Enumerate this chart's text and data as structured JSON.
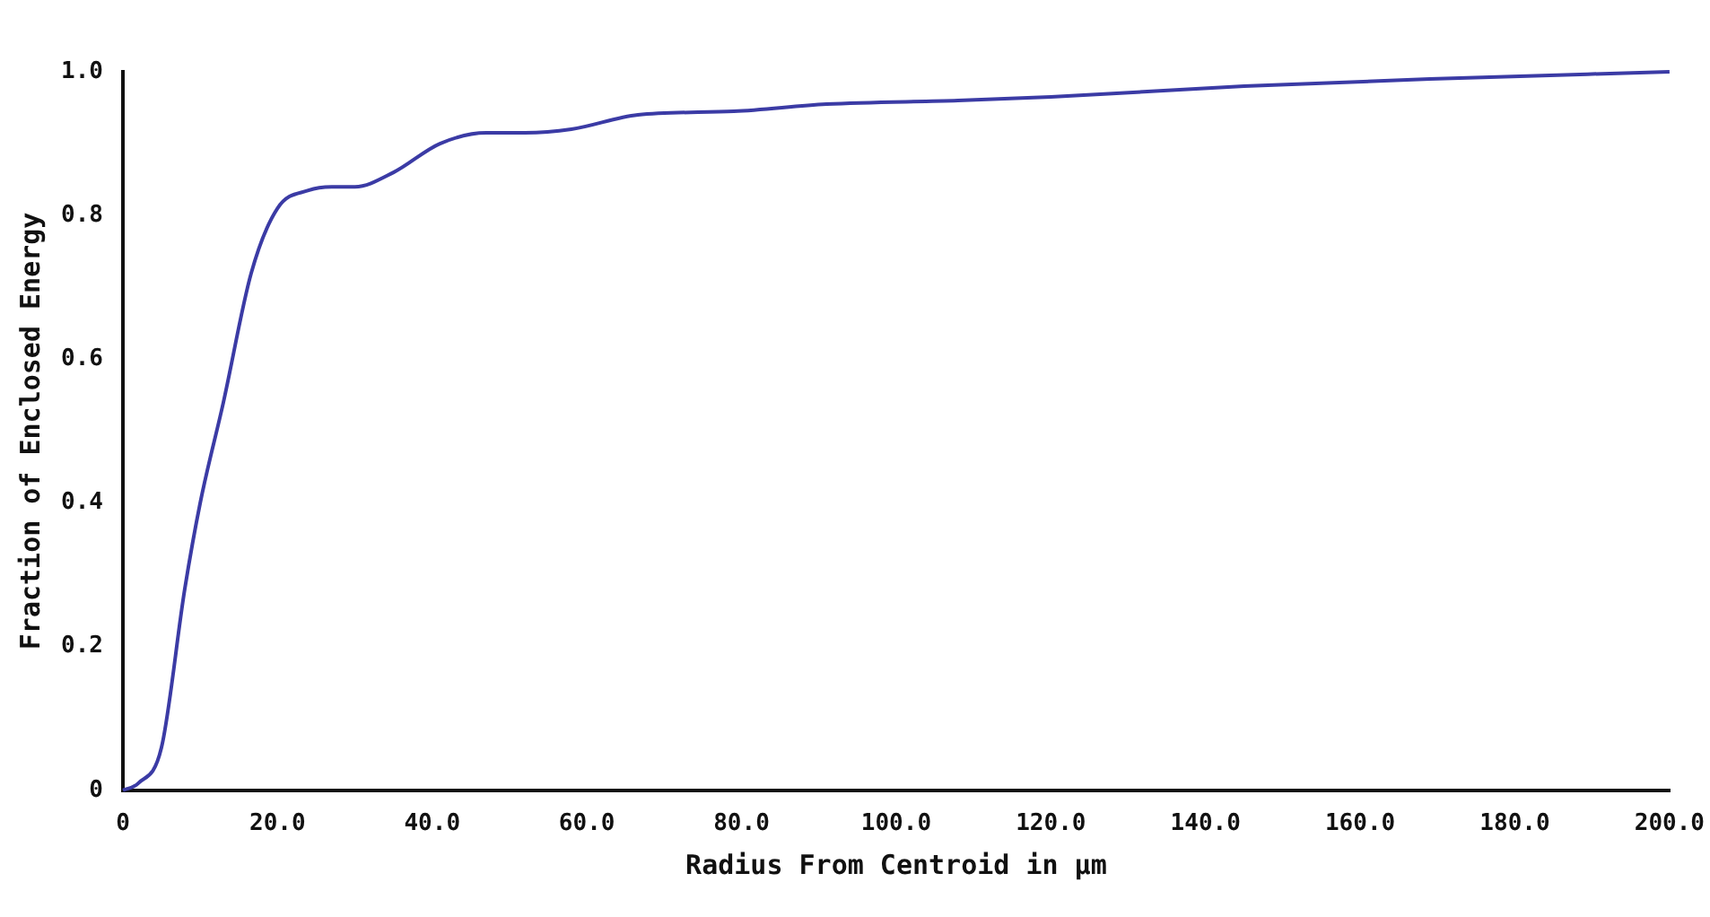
{
  "chart_data": {
    "type": "line",
    "xlabel": "Radius From Centroid in µm",
    "ylabel": "Fraction of Enclosed Energy",
    "x": [
      0,
      2,
      5,
      8,
      10,
      13,
      16.6,
      20,
      24,
      27,
      30,
      35,
      41,
      47,
      52,
      58,
      66.6,
      79,
      91,
      108,
      120,
      145,
      169,
      200
    ],
    "series": [
      {
        "color": "#3b3ba5",
        "values": [
          0,
          0.01,
          0.06,
          0.28,
          0.4,
          0.54,
          0.72,
          0.81,
          0.835,
          0.84,
          0.84,
          0.86,
          0.9,
          0.915,
          0.915,
          0.92,
          0.94,
          0.945,
          0.955,
          0.96,
          0.965,
          0.98,
          0.99,
          1.0
        ]
      }
    ],
    "xlim": [
      0,
      200
    ],
    "xticks": [
      {
        "value": 0,
        "label": "0"
      },
      {
        "value": 20,
        "label": "20.0"
      },
      {
        "value": 40,
        "label": "40.0"
      },
      {
        "value": 60,
        "label": "60.0"
      },
      {
        "value": 80,
        "label": "80.0"
      },
      {
        "value": 100,
        "label": "100.0"
      },
      {
        "value": 120,
        "label": "120.0"
      },
      {
        "value": 140,
        "label": "140.0"
      },
      {
        "value": 160,
        "label": "160.0"
      },
      {
        "value": 180,
        "label": "180.0"
      },
      {
        "value": 200,
        "label": "200.0"
      }
    ],
    "ylim": [
      0,
      1
    ],
    "yticks": [
      {
        "value": 0,
        "label": "0"
      },
      {
        "value": 0.2,
        "label": "0.2"
      },
      {
        "value": 0.4,
        "label": "0.4"
      },
      {
        "value": 0.6,
        "label": "0.6"
      },
      {
        "value": 0.8,
        "label": "0.8"
      },
      {
        "value": 1,
        "label": "1.0"
      }
    ],
    "grid": false,
    "legend": false,
    "marker": "none",
    "line_style": "solid"
  }
}
